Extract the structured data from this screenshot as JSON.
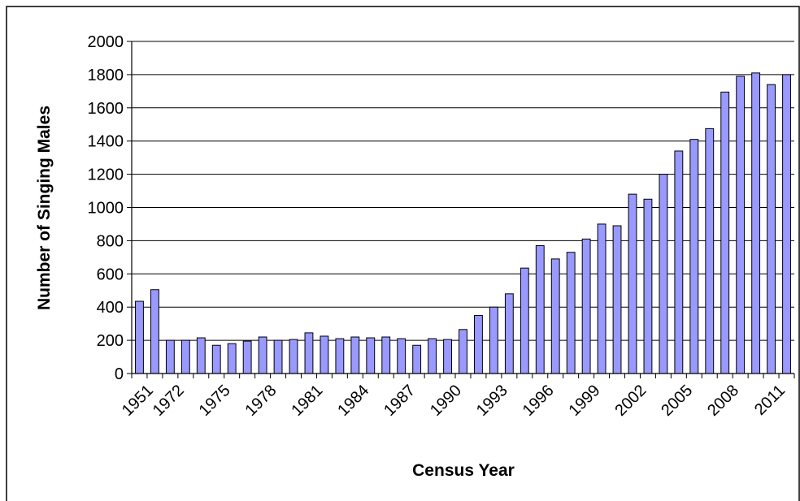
{
  "chart_data": {
    "type": "bar",
    "title": "",
    "xlabel": "Census Year",
    "ylabel": "Number of Singing Males",
    "ylim": [
      0,
      2000
    ],
    "yticks": [
      0,
      200,
      400,
      600,
      800,
      1000,
      1200,
      1400,
      1600,
      1800,
      2000
    ],
    "ytick_labels": [
      "0",
      "200",
      "400",
      "600",
      "800",
      "1000",
      "1200",
      "1400",
      "1600",
      "1800",
      "2000"
    ],
    "xtick_labels": [
      "1951",
      "1972",
      "1975",
      "1978",
      "1981",
      "1984",
      "1987",
      "1990",
      "1993",
      "1996",
      "1999",
      "2002",
      "2005",
      "2008",
      "2011"
    ],
    "grid": "horizontal",
    "legend": "none",
    "bar_color": "#9999ff",
    "values": [
      435,
      505,
      200,
      200,
      215,
      170,
      180,
      195,
      220,
      200,
      205,
      245,
      225,
      210,
      220,
      215,
      220,
      210,
      170,
      210,
      205,
      265,
      350,
      400,
      480,
      635,
      770,
      690,
      730,
      810,
      900,
      890,
      1080,
      1050,
      1200,
      1340,
      1410,
      1475,
      1695,
      1790,
      1810,
      1740,
      1800
    ]
  }
}
